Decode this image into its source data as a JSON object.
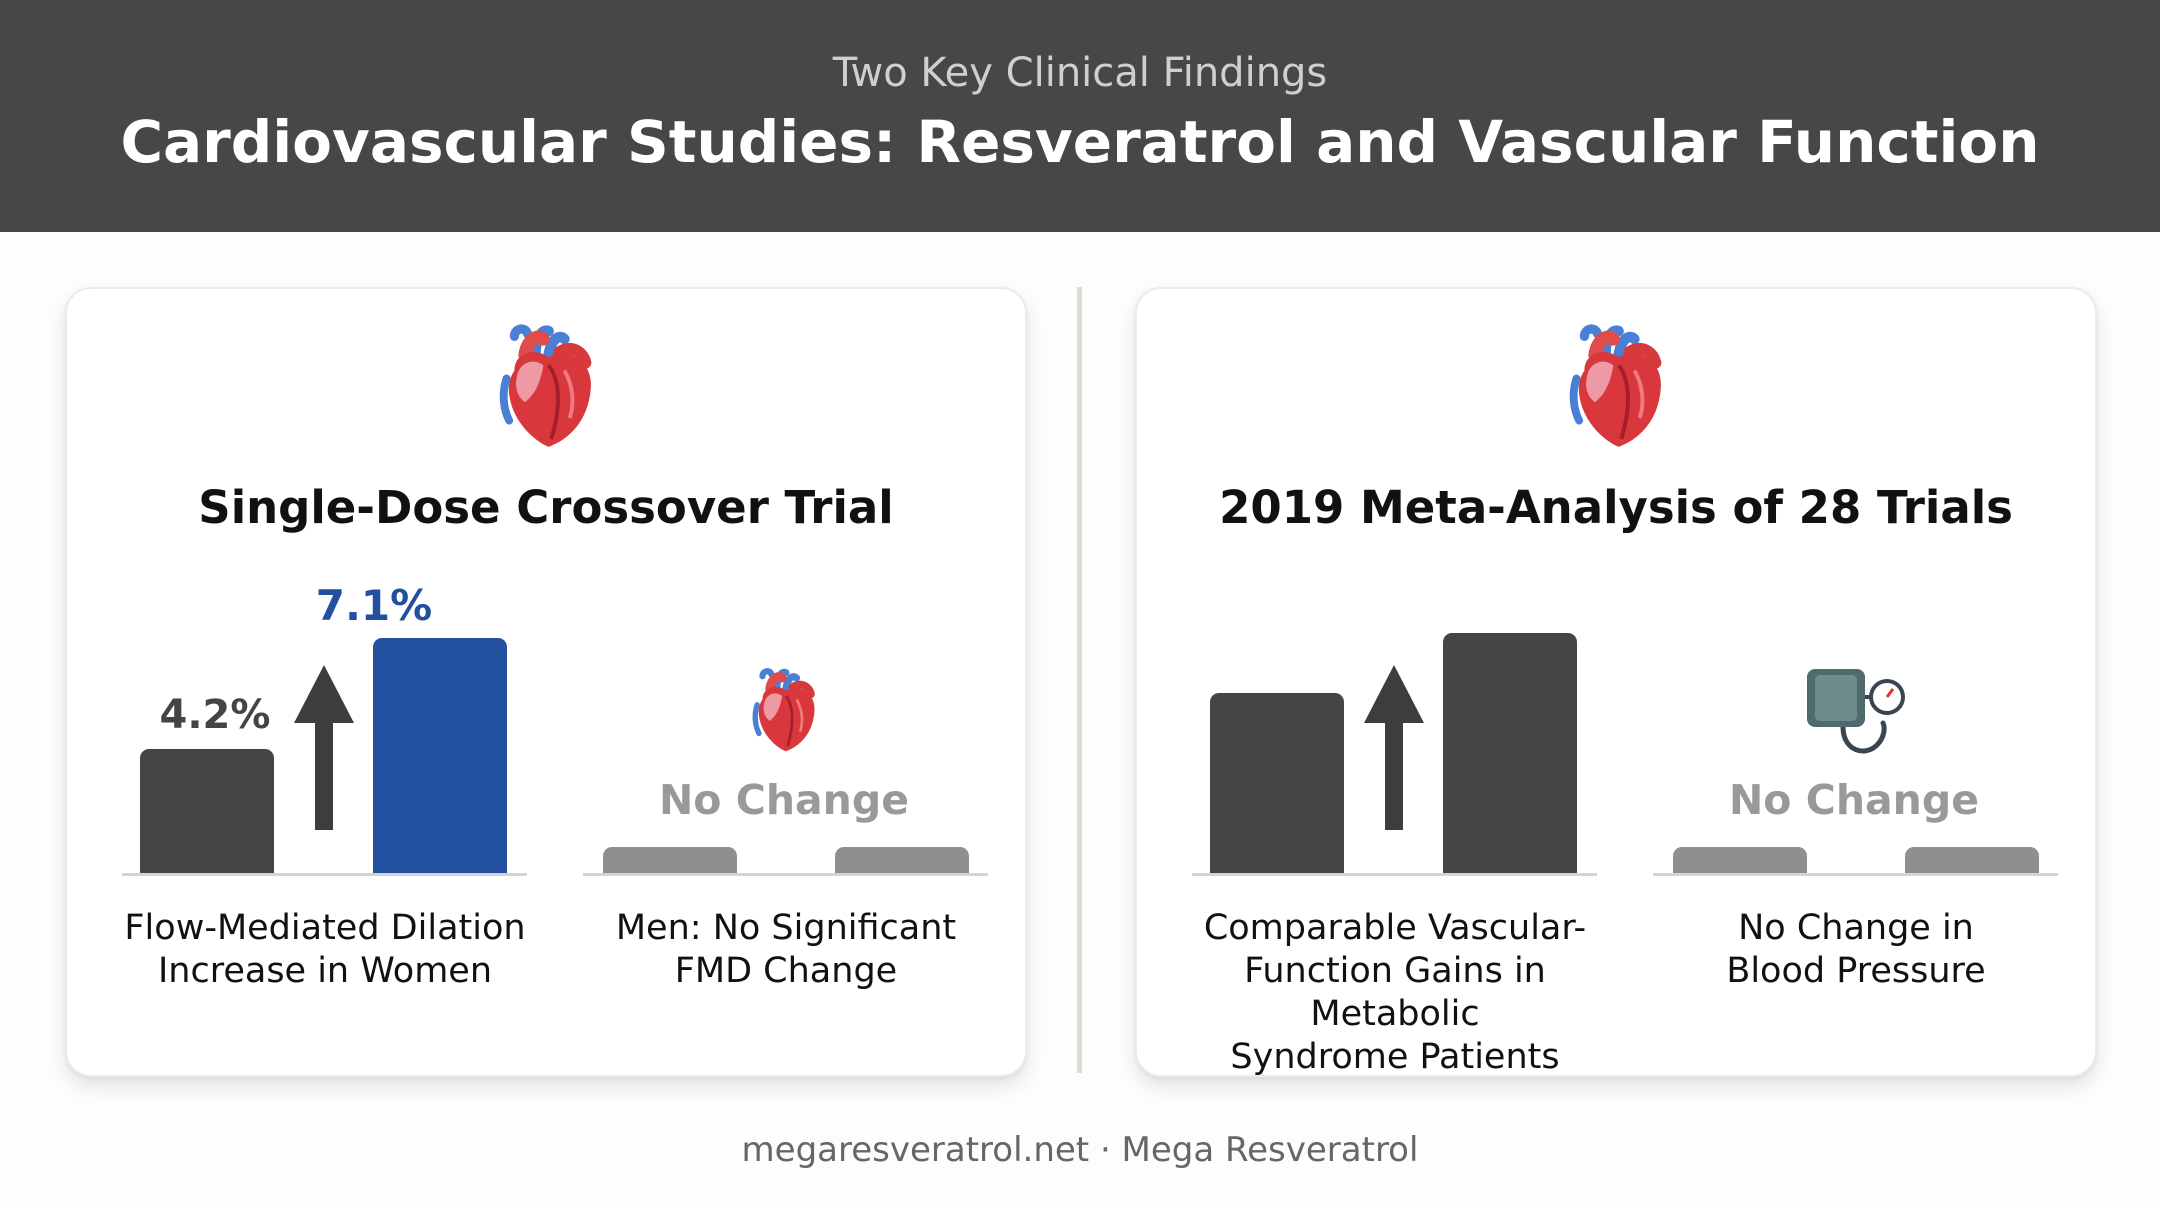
{
  "header": {
    "kicker": "Two Key Clinical Findings",
    "title": "Cardiovascular Studies: Resveratrol and Vascular Function"
  },
  "colors": {
    "header_bg": "#474747",
    "accent_blue": "#234f9f",
    "bar_dark": "#454545",
    "bar_muted": "#8f8f8f"
  },
  "left_card": {
    "icon": "anatomical-heart-icon",
    "title": "Single-Dose Crossover Trial",
    "women": {
      "before_label": "4.2%",
      "after_label": "7.1%",
      "before_value": 4.2,
      "after_value": 7.1,
      "caption_line1": "Flow-Mediated Dilation",
      "caption_line2": "Increase in Women"
    },
    "men": {
      "icon": "anatomical-heart-icon",
      "status": "No Change",
      "caption_line1": "Men: No Significant",
      "caption_line2": "FMD Change"
    }
  },
  "right_card": {
    "icon": "anatomical-heart-icon",
    "title": "2019 Meta-Analysis of 28 Trials",
    "vascular": {
      "caption_line1": "Comparable Vascular-",
      "caption_line2": "Function Gains in Metabolic",
      "caption_line3": "Syndrome Patients"
    },
    "bp": {
      "icon": "blood-pressure-cuff-icon",
      "status": "No Change",
      "caption_line1": "No Change in",
      "caption_line2": "Blood Pressure"
    }
  },
  "footer": {
    "text": "megaresveratrol.net · Mega Resveratrol"
  }
}
